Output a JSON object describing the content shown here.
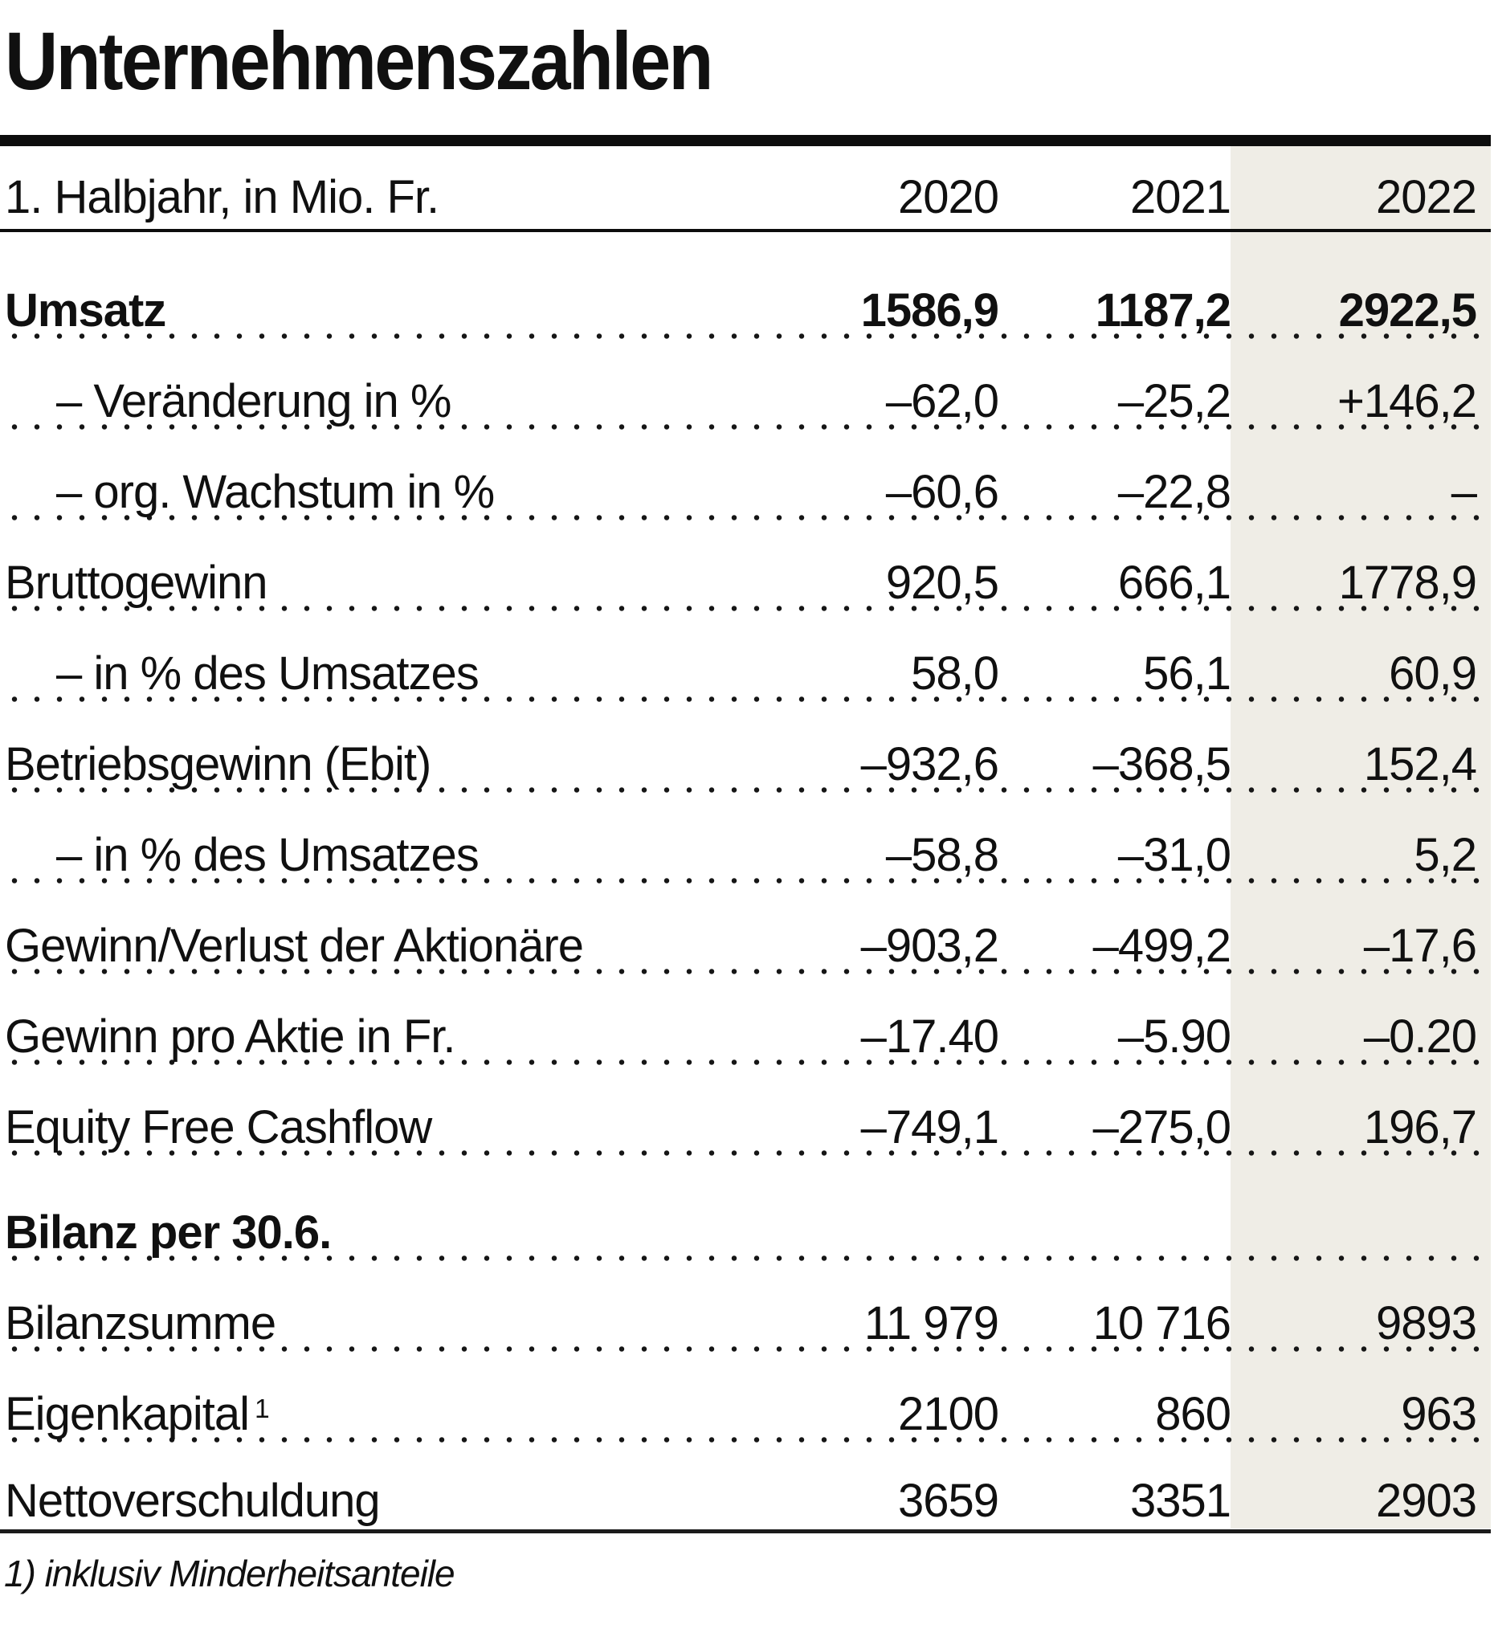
{
  "title": "Unternehmenszahlen",
  "colors": {
    "highlight_col_bg": "#EFEDE6",
    "rule_color": "#0d0d0d",
    "text_color": "#101010",
    "dot_color": "#161616"
  },
  "chart_data": {
    "type": "table",
    "title": "Unternehmenszahlen",
    "unit_label": "1. Halbjahr, in Mio. Fr.",
    "columns": [
      "2020",
      "2021",
      "2022"
    ],
    "highlighted_column": "2022",
    "rows": [
      {
        "label": "Umsatz",
        "style": "bold",
        "values": [
          "1586,9",
          "1187,2",
          "2922,5"
        ]
      },
      {
        "label": "– Veränderung in %",
        "indent": true,
        "values": [
          "–62,0",
          "–25,2",
          "+146,2"
        ]
      },
      {
        "label": "– org. Wachstum in %",
        "indent": true,
        "values": [
          "–60,6",
          "–22,8",
          "–"
        ]
      },
      {
        "label": "Bruttogewinn",
        "values": [
          "920,5",
          "666,1",
          "1778,9"
        ]
      },
      {
        "label": "– in % des Umsatzes",
        "indent": true,
        "values": [
          "58,0",
          "56,1",
          "60,9"
        ]
      },
      {
        "label": "Betriebsgewinn (Ebit)",
        "values": [
          "–932,6",
          "–368,5",
          "152,4"
        ]
      },
      {
        "label": "– in % des Umsatzes",
        "indent": true,
        "values": [
          "–58,8",
          "–31,0",
          "5,2"
        ]
      },
      {
        "label": "Gewinn/Verlust der Aktionäre",
        "values": [
          "–903,2",
          "–499,2",
          "–17,6"
        ]
      },
      {
        "label": "Gewinn pro Aktie in Fr.",
        "values": [
          "–17.40",
          "–5.90",
          "–0.20"
        ]
      },
      {
        "label": "Equity Free Cashflow",
        "values": [
          "–749,1",
          "–275,0",
          "196,7"
        ]
      },
      {
        "label": "Bilanz per 30.6.",
        "style": "section"
      },
      {
        "label": "Bilanzsumme",
        "values": [
          "11 979",
          "10 716",
          "9893"
        ]
      },
      {
        "label": "Eigenkapital",
        "footnote_ref": "1",
        "values": [
          "2100",
          "860",
          "963"
        ]
      },
      {
        "label": "Nettoverschuldung",
        "values": [
          "3659",
          "3351",
          "2903"
        ]
      }
    ],
    "footnote": "1) inklusiv Minderheitsanteile"
  }
}
